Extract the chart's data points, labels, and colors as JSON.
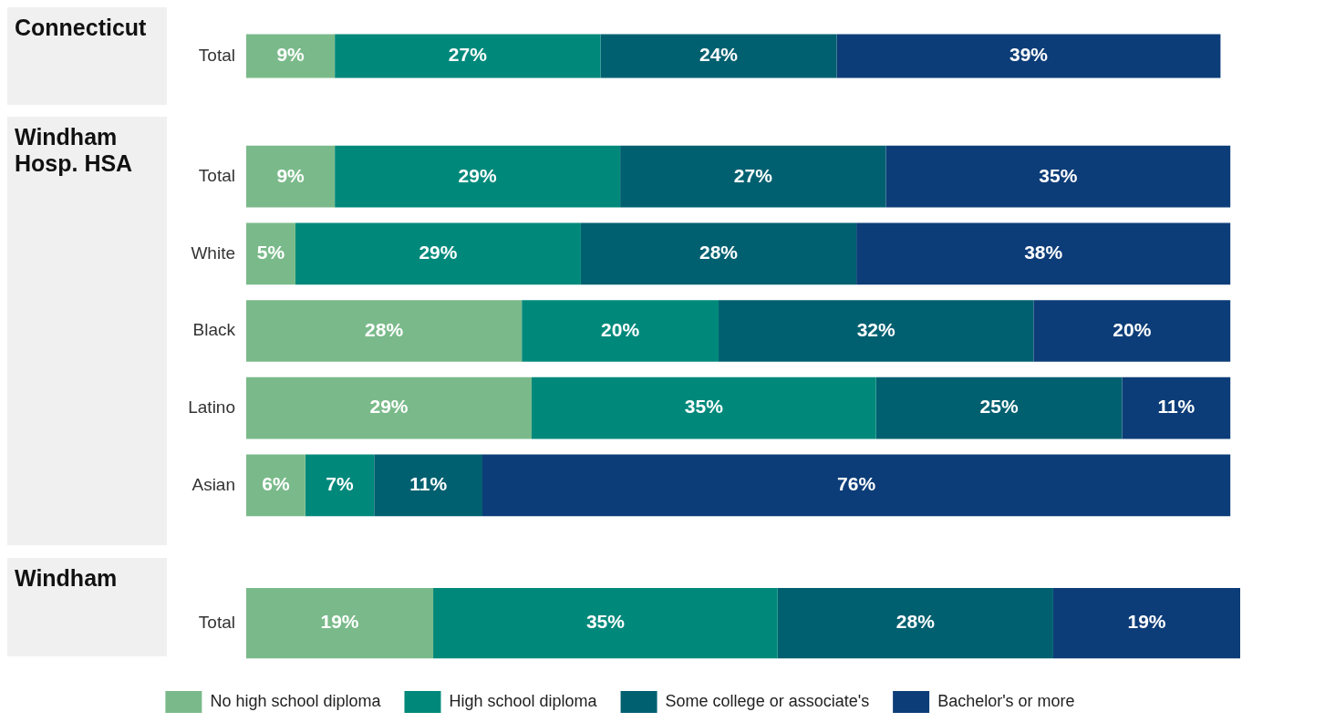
{
  "chart_data": [
    {
      "type": "bar",
      "orientation": "horizontal",
      "stacked": true,
      "title": "Connecticut",
      "categories": [
        "Total"
      ],
      "grid": false,
      "tick_labels": "y",
      "series": [
        {
          "color": "#7aba8a",
          "values": [
            9
          ],
          "value_labels": [
            "9%"
          ]
        },
        {
          "color": "#00897b",
          "values": [
            27
          ],
          "value_labels": [
            "27%"
          ]
        },
        {
          "color": "#006070",
          "values": [
            24
          ],
          "value_labels": [
            "24%"
          ]
        },
        {
          "color": "#0d3d78",
          "values": [
            39
          ],
          "value_labels": [
            "39%"
          ]
        }
      ]
    },
    {
      "type": "bar",
      "orientation": "horizontal",
      "stacked": true,
      "title": "Windham Hosp. HSA",
      "categories": [
        "Total",
        "White",
        "Black",
        "Latino",
        "Asian"
      ],
      "grid": false,
      "tick_labels": "y",
      "series": [
        {
          "color": "#7aba8a",
          "values": [
            9,
            5,
            28,
            29,
            6
          ],
          "value_labels": [
            "9%",
            "5%",
            "28%",
            "29%",
            "6%"
          ]
        },
        {
          "color": "#00897b",
          "values": [
            29,
            29,
            20,
            35,
            7
          ],
          "value_labels": [
            "29%",
            "29%",
            "20%",
            "35%",
            "7%"
          ]
        },
        {
          "color": "#006070",
          "values": [
            27,
            28,
            32,
            25,
            11
          ],
          "value_labels": [
            "27%",
            "28%",
            "32%",
            "25%",
            "11%"
          ]
        },
        {
          "color": "#0d3d78",
          "values": [
            35,
            38,
            20,
            11,
            76
          ],
          "value_labels": [
            "35%",
            "38%",
            "20%",
            "11%",
            "76%"
          ]
        }
      ]
    },
    {
      "type": "bar",
      "orientation": "horizontal",
      "stacked": true,
      "title": "Windham",
      "categories": [
        "Total"
      ],
      "grid": false,
      "legend": "bottom",
      "tick_labels": "y",
      "series": [
        {
          "name": "No high school diploma",
          "color": "#7aba8a",
          "values": [
            19
          ],
          "value_labels": [
            "19%"
          ]
        },
        {
          "name": "High school diploma",
          "color": "#00897b",
          "values": [
            35
          ],
          "value_labels": [
            "35%"
          ]
        },
        {
          "name": "Some college or associate's",
          "color": "#006070",
          "values": [
            28
          ],
          "value_labels": [
            "28%"
          ]
        },
        {
          "name": "Bachelor's or more",
          "color": "#0d3d78",
          "values": [
            19
          ],
          "value_labels": [
            "19%"
          ]
        }
      ]
    }
  ]
}
